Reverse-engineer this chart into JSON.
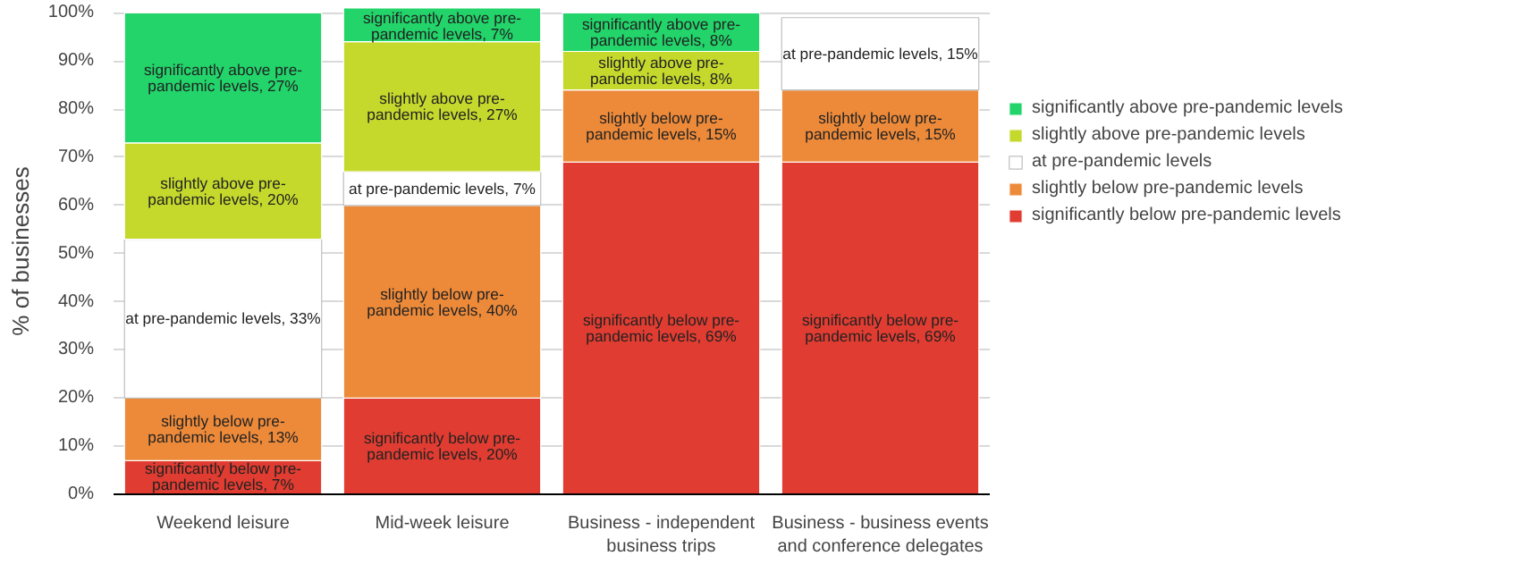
{
  "chart_data": {
    "type": "bar",
    "stacked": true,
    "ylabel": "% of businesses",
    "categories": [
      "Weekend leisure",
      "Mid-week leisure",
      "Business - independent business trips",
      "Business - business events and conference delegates"
    ],
    "ylim": [
      0,
      101
    ],
    "yticks": [
      {
        "value": 0,
        "label": "0%"
      },
      {
        "value": 10,
        "label": "10%"
      },
      {
        "value": 20,
        "label": "20%"
      },
      {
        "value": 30,
        "label": "30%"
      },
      {
        "value": 40,
        "label": "40%"
      },
      {
        "value": 50,
        "label": "50%"
      },
      {
        "value": 60,
        "label": "60%"
      },
      {
        "value": 70,
        "label": "70%"
      },
      {
        "value": 80,
        "label": "80%"
      },
      {
        "value": 90,
        "label": "90%"
      },
      {
        "value": 100,
        "label": "100%"
      }
    ],
    "grid": "y",
    "legend": "right",
    "series": [
      {
        "name": "significantly below pre-pandemic levels",
        "color": "#e03c31",
        "values": [
          7,
          20,
          69,
          69
        ],
        "value_labels": [
          "significantly below pre-pandemic levels, 7%",
          "significantly below pre-pandemic levels, 20%",
          "significantly below pre-pandemic levels, 69%",
          "significantly below pre-pandemic levels, 69%"
        ]
      },
      {
        "name": "slightly below pre-pandemic levels",
        "color": "#ed8a3a",
        "values": [
          13,
          40,
          15,
          15
        ],
        "value_labels": [
          "slightly below pre-pandemic levels, 13%",
          "slightly below pre-pandemic levels, 40%",
          "slightly below pre-pandemic levels, 15%",
          "slightly below pre-pandemic levels, 15%"
        ]
      },
      {
        "name": "at pre-pandemic levels",
        "color": "#ffffff",
        "values": [
          33,
          7,
          null,
          15
        ],
        "value_labels": [
          "at pre-pandemic levels, 33%",
          "at pre-pandemic levels, 7%",
          null,
          "at pre-pandemic levels, 15%"
        ]
      },
      {
        "name": "slightly above pre-pandemic levels",
        "color": "#c5d92d",
        "values": [
          20,
          27,
          8,
          null
        ],
        "value_labels": [
          "slightly above pre-pandemic levels, 20%",
          "slightly above pre-pandemic levels, 27%",
          "slightly above pre-pandemic levels, 8%",
          null
        ]
      },
      {
        "name": "significantly above pre-pandemic levels",
        "color": "#22d46a",
        "values": [
          27,
          7,
          8,
          null
        ],
        "value_labels": [
          "significantly above pre-pandemic levels, 27%",
          "significantly above pre-pandemic levels, 7%",
          "significantly above pre-pandemic levels, 8%",
          null
        ]
      }
    ]
  }
}
